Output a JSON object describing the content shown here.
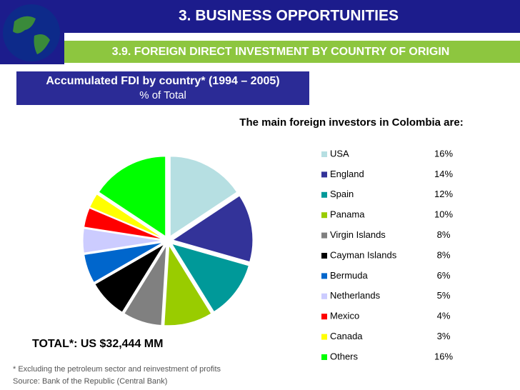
{
  "header": {
    "section": "3. BUSINESS OPPORTUNITIES",
    "subsection": "3.9. FOREIGN DIRECT INVESTMENT BY COUNTRY OF ORIGIN"
  },
  "chart_data": {
    "type": "pie",
    "title": "Accumulated FDI by country*  (1994 – 2005)",
    "subtitle": "% of Total",
    "heading": "The main foreign investors in Colombia are:",
    "total": "TOTAL*: US $32,444 MM",
    "categories": [
      "USA",
      "England",
      "Spain",
      "Panama",
      "Virgin Islands",
      "Cayman Islands",
      "Bermuda",
      "Netherlands",
      "Mexico",
      "Canada",
      "Others"
    ],
    "values": [
      16,
      14,
      12,
      10,
      8,
      8,
      6,
      5,
      4,
      3,
      16
    ],
    "value_labels": [
      "16%",
      "14%",
      "12%",
      "10%",
      "8%",
      "8%",
      "6%",
      "5%",
      "4%",
      "3%",
      "16%"
    ],
    "colors": [
      "#b6dfe2",
      "#333399",
      "#009999",
      "#99cc00",
      "#808080",
      "#000000",
      "#0066cc",
      "#ccccff",
      "#ff0000",
      "#ffff00",
      "#00ff00"
    ]
  },
  "footnotes": [
    "* Excluding the petroleum sector and reinvestment of profits",
    "Source: Bank of the Republic (Central Bank)"
  ]
}
